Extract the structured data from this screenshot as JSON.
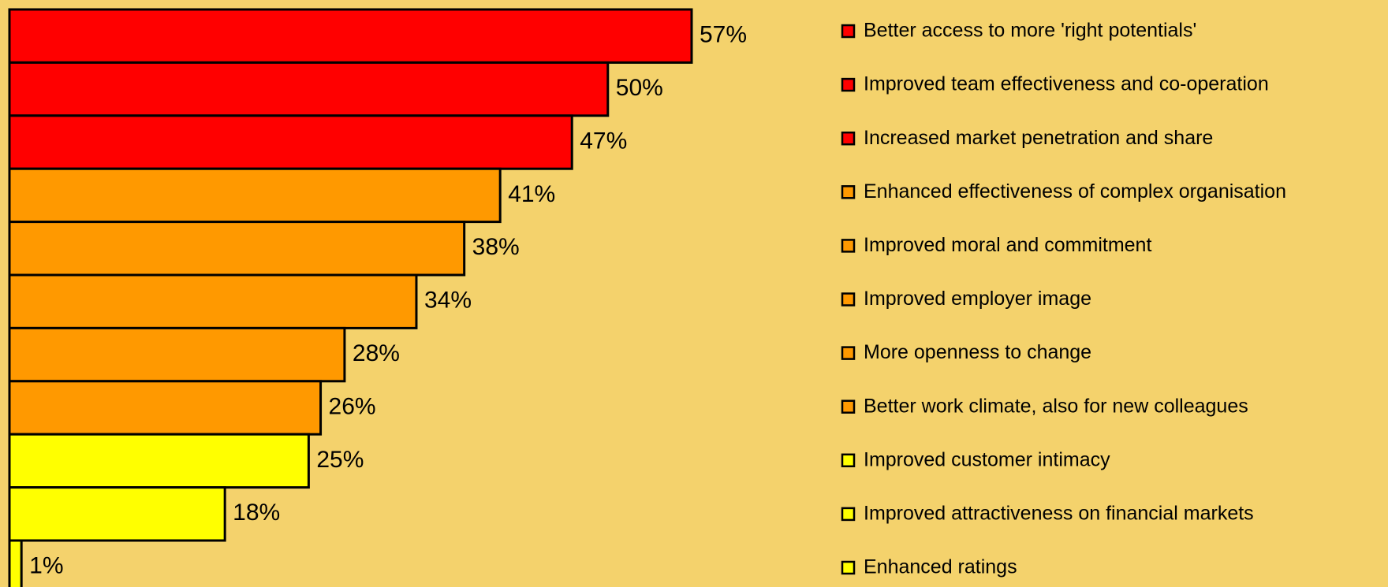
{
  "chart_data": {
    "type": "bar",
    "orientation": "horizontal",
    "categories": [
      "Better access to more 'right potentials'",
      "Improved team effectiveness and co-operation",
      "Increased market  penetration and share",
      "Enhanced effectiveness of complex organisation",
      "Improved moral and commitment",
      "Improved employer image",
      "More openness to change",
      "Better work climate, also for new colleagues",
      "Improved customer intimacy",
      "Improved attractiveness on financial markets",
      "Enhanced ratings"
    ],
    "values": [
      57,
      50,
      47,
      41,
      38,
      34,
      28,
      26,
      25,
      18,
      1
    ],
    "value_labels": [
      "57%",
      "50%",
      "47%",
      "41%",
      "38%",
      "34%",
      "28%",
      "26%",
      "25%",
      "18%",
      "1%"
    ],
    "colors": [
      "#ff0000",
      "#ff0000",
      "#ff0000",
      "#ff9900",
      "#ff9900",
      "#ff9900",
      "#ff9900",
      "#ff9900",
      "#ffff00",
      "#ffff00",
      "#ffff00"
    ],
    "legend": "right"
  }
}
